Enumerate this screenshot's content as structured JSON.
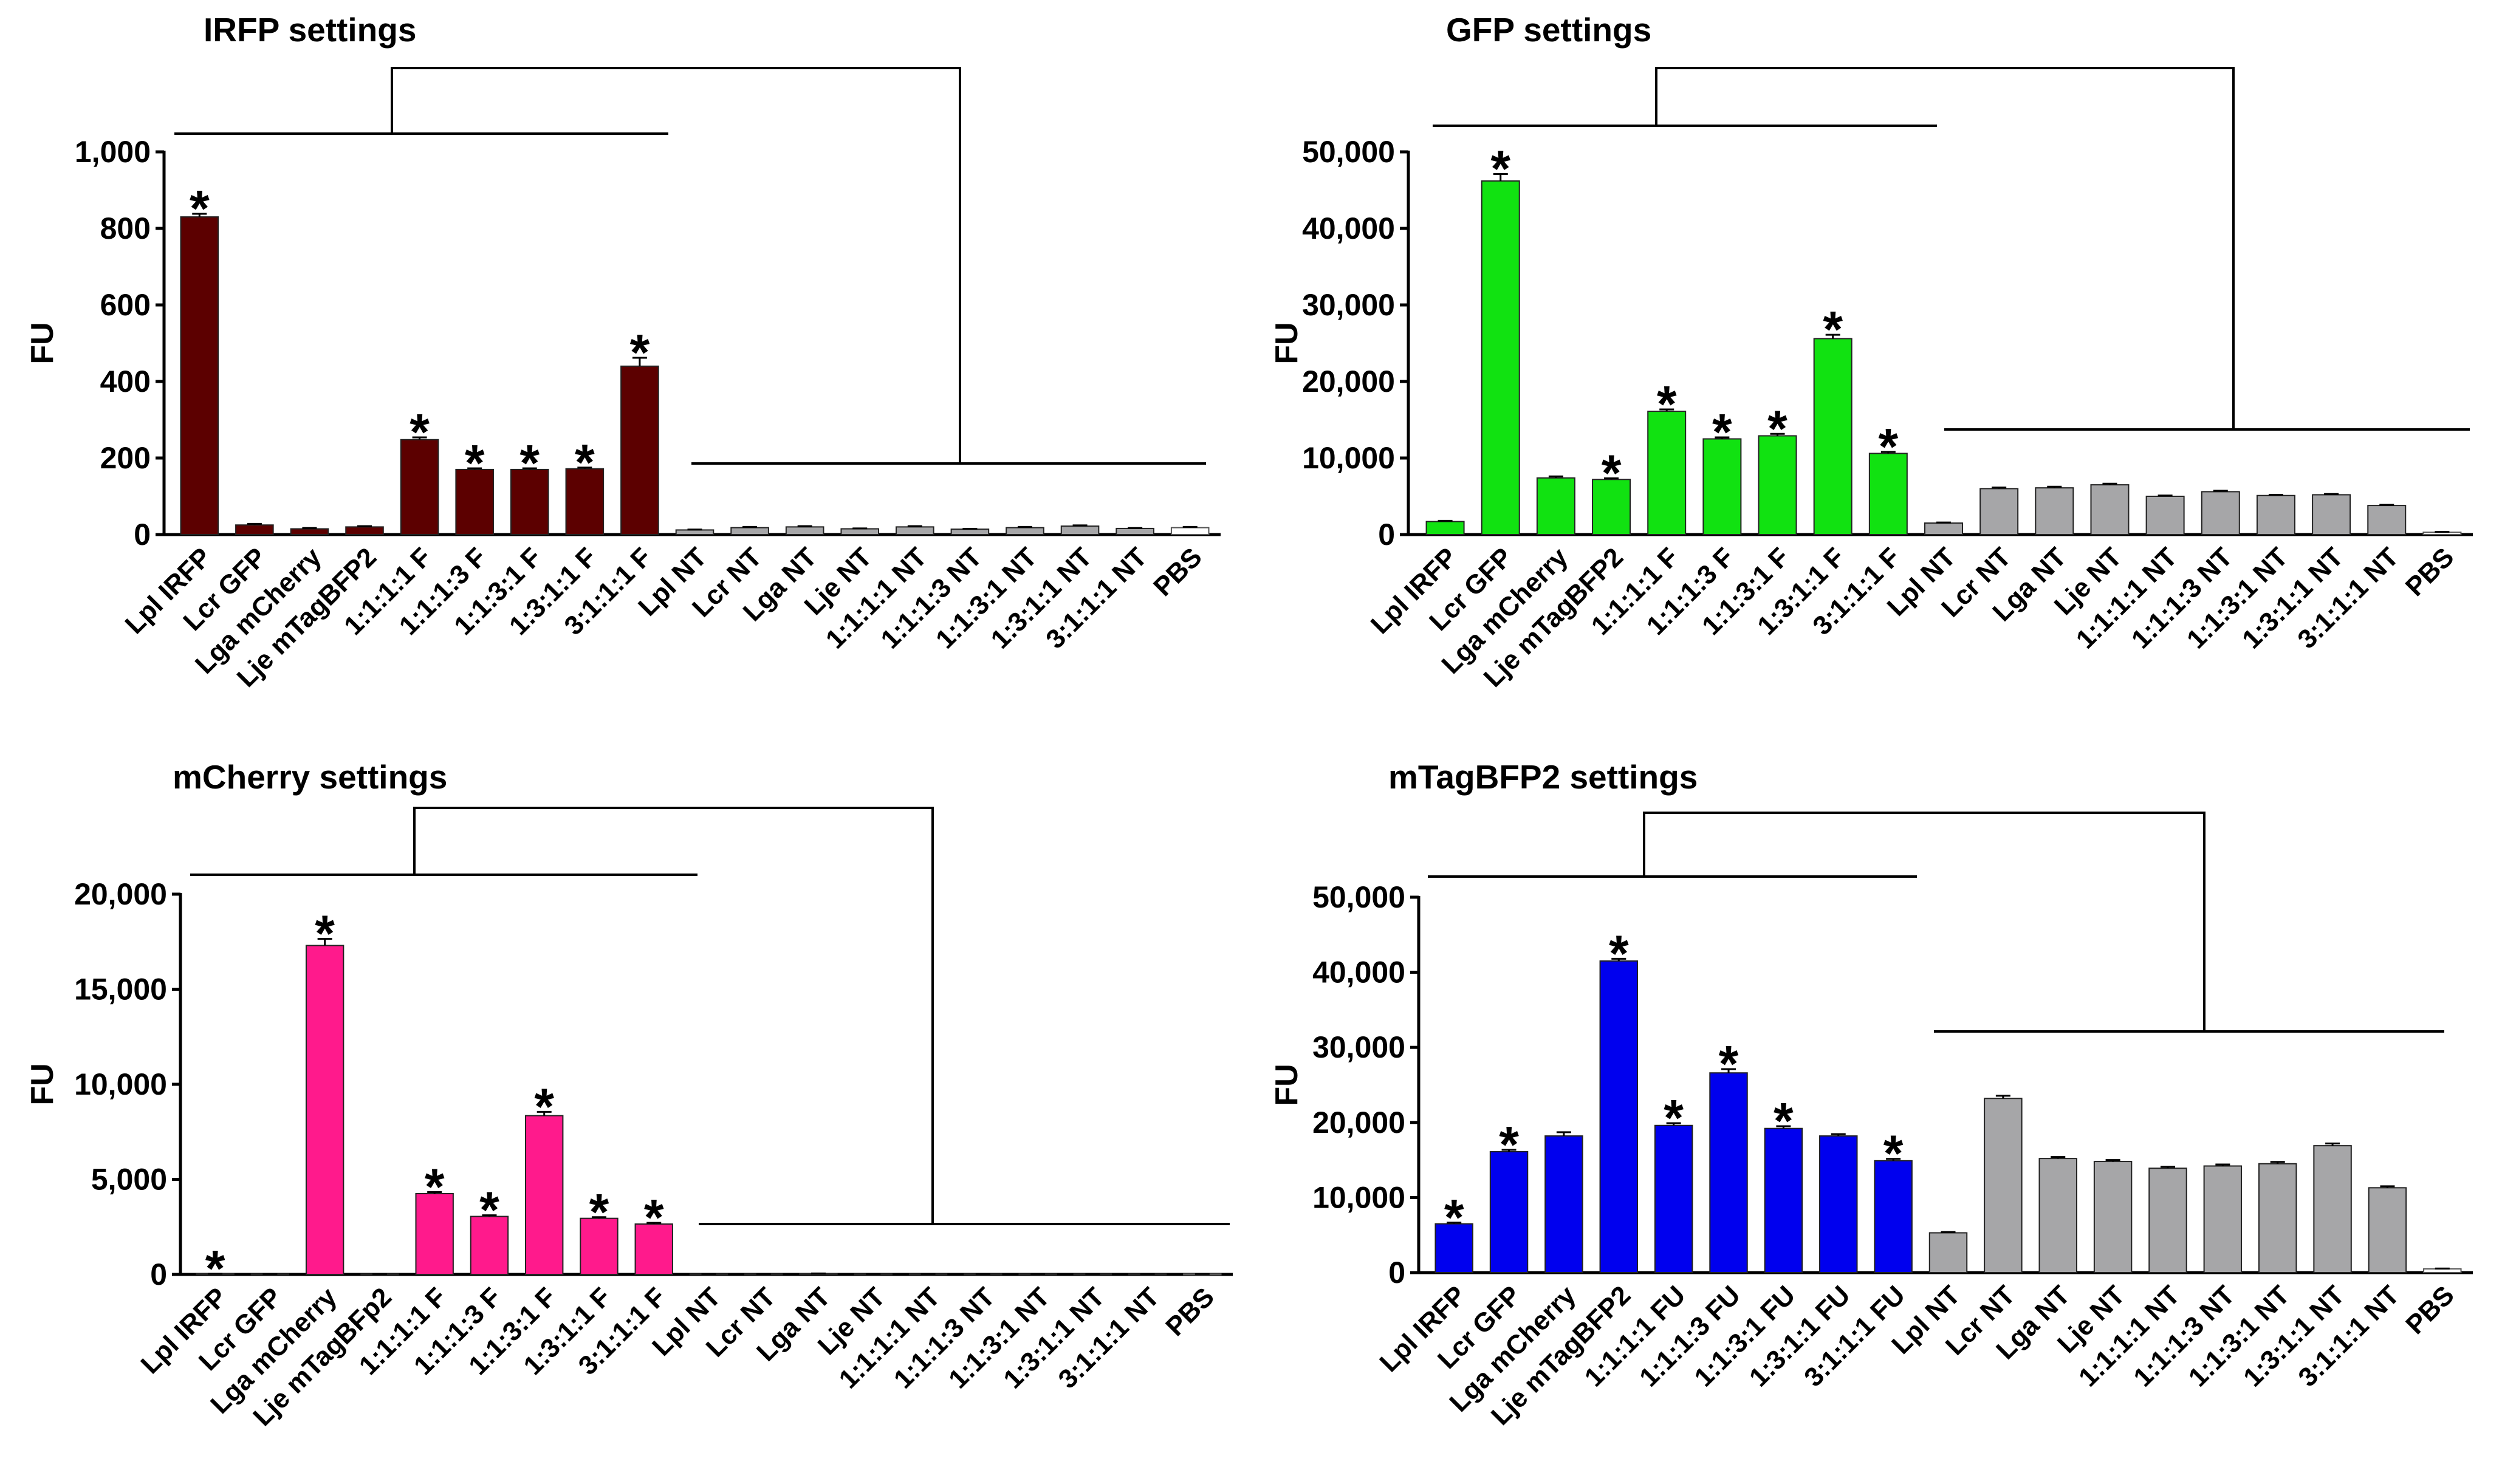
{
  "chart_data": [
    {
      "type": "bar",
      "title": "IRFP settings",
      "ylabel": "FU",
      "ylim": [
        0,
        1000
      ],
      "yticks": [
        "0",
        "200",
        "400",
        "600",
        "800",
        "1,000"
      ],
      "categories": [
        "Lpl IRFP",
        "Lcr GFP",
        "Lga mCherry",
        "Lje mTagBFP2",
        "1:1:1:1 F",
        "1:1:1:3 F",
        "1:1:3:1 F",
        "1:3:1:1 F",
        "3:1:1:1 F",
        "Lpl NT",
        "Lcr NT",
        "Lga NT",
        "Lje NT",
        "1:1:1:1 NT",
        "1:1:1:3 NT",
        "1:1:3:1 NT",
        "1:3:1:1 NT",
        "3:1:1:1 NT",
        "PBS"
      ],
      "values": [
        830,
        25,
        15,
        20,
        248,
        170,
        170,
        172,
        440,
        12,
        18,
        20,
        15,
        20,
        14,
        18,
        22,
        16,
        18
      ],
      "errors": [
        8,
        3,
        2,
        2,
        6,
        3,
        3,
        3,
        22,
        1,
        2,
        2,
        1,
        2,
        1,
        2,
        2,
        1,
        2
      ],
      "significant": [
        true,
        false,
        false,
        false,
        true,
        true,
        true,
        true,
        true,
        false,
        false,
        false,
        false,
        false,
        false,
        false,
        false,
        false,
        false
      ],
      "significance_marker": "*",
      "colors": [
        "#5c0000",
        "#5c0000",
        "#5c0000",
        "#5c0000",
        "#5c0000",
        "#5c0000",
        "#5c0000",
        "#5c0000",
        "#5c0000",
        "#a6a6a8",
        "#a6a6a8",
        "#a6a6a8",
        "#a6a6a8",
        "#a6a6a8",
        "#a6a6a8",
        "#a6a6a8",
        "#a6a6a8",
        "#a6a6a8",
        "#ffffff"
      ]
    },
    {
      "type": "bar",
      "title": "GFP settings",
      "ylabel": "FU",
      "ylim": [
        0,
        50000
      ],
      "yticks": [
        "0",
        "10,000",
        "20,000",
        "30,000",
        "40,000",
        "50,000"
      ],
      "categories": [
        "Lpl IRFP",
        "Lcr GFP",
        "Lga mCherry",
        "Lje mTagBFP2",
        "1:1:1:1 F",
        "1:1:1:3 F",
        "1:1:3:1 F",
        "1:3:1:1 F",
        "3:1:1:1 F",
        "Lpl NT",
        "Lcr NT",
        "Lga NT",
        "Lje NT",
        "1:1:1:1 NT",
        "1:1:1:3 NT",
        "1:1:3:1 NT",
        "1:3:1:1 NT",
        "3:1:1:1 NT",
        "PBS"
      ],
      "values": [
        1700,
        46200,
        7400,
        7200,
        16100,
        12500,
        12900,
        25600,
        10600,
        1500,
        6000,
        6100,
        6500,
        5000,
        5600,
        5100,
        5200,
        3800,
        300
      ],
      "errors": [
        100,
        900,
        200,
        150,
        250,
        200,
        250,
        500,
        200,
        80,
        150,
        150,
        150,
        100,
        120,
        100,
        100,
        80,
        50
      ],
      "significant": [
        false,
        true,
        false,
        true,
        true,
        true,
        true,
        true,
        true,
        false,
        false,
        false,
        false,
        false,
        false,
        false,
        false,
        false,
        false
      ],
      "significance_marker": "*",
      "colors": [
        "#11e211",
        "#11e211",
        "#11e211",
        "#11e211",
        "#11e211",
        "#11e211",
        "#11e211",
        "#11e211",
        "#11e211",
        "#a6a6a8",
        "#a6a6a8",
        "#a6a6a8",
        "#a6a6a8",
        "#a6a6a8",
        "#a6a6a8",
        "#a6a6a8",
        "#a6a6a8",
        "#a6a6a8",
        "#ffffff"
      ]
    },
    {
      "type": "bar",
      "title": "mCherry settings",
      "ylabel": "FU",
      "ylim": [
        0,
        20000
      ],
      "yticks": [
        "0",
        "5,000",
        "10,000",
        "15,000",
        "20,000"
      ],
      "categories": [
        "Lpl IRFP",
        "Lcr GFP",
        "Lga mCherry",
        "Lje mTagBFp2",
        "1:1:1:1 F",
        "1:1:1:3 F",
        "1:1:3:1 F",
        "1:3:1:1 F",
        "3:1:1:1 F",
        "Lpl NT",
        "Lcr NT",
        "Lga NT",
        "Lje NT",
        "1:1:1:1 NT",
        "1:1:1:3 NT",
        "1:1:3:1 NT",
        "1:3:1:1 NT",
        "3:1:1:1 NT",
        "PBS"
      ],
      "values": [
        30,
        20,
        17300,
        20,
        4250,
        3050,
        8350,
        2950,
        2650,
        20,
        20,
        40,
        20,
        20,
        20,
        20,
        20,
        20,
        20
      ],
      "errors": [
        5,
        5,
        350,
        5,
        80,
        60,
        200,
        60,
        60,
        5,
        5,
        10,
        5,
        5,
        5,
        5,
        5,
        5,
        5
      ],
      "significant": [
        true,
        false,
        true,
        false,
        true,
        true,
        true,
        true,
        true,
        false,
        false,
        false,
        false,
        false,
        false,
        false,
        false,
        false,
        false
      ],
      "significance_marker": "*",
      "colors": [
        "#ff1a8c",
        "#ff1a8c",
        "#ff1a8c",
        "#ff1a8c",
        "#ff1a8c",
        "#ff1a8c",
        "#ff1a8c",
        "#ff1a8c",
        "#ff1a8c",
        "#a6a6a8",
        "#a6a6a8",
        "#a6a6a8",
        "#a6a6a8",
        "#a6a6a8",
        "#a6a6a8",
        "#a6a6a8",
        "#a6a6a8",
        "#a6a6a8",
        "#ffffff"
      ]
    },
    {
      "type": "bar",
      "title": "mTagBFP2 settings",
      "ylabel": "FU",
      "ylim": [
        0,
        50000
      ],
      "yticks": [
        "0",
        "10,000",
        "20,000",
        "30,000",
        "40,000",
        "50,000"
      ],
      "categories": [
        "Lpl IRFP",
        "Lcr GFP",
        "Lga mCherry",
        "Lje mTagBFP2",
        "1:1:1:1 FU",
        "1:1:1:3 FU",
        "1:1:3:1 FU",
        "1:3:1:1 FU",
        "3:1:1:1 FU",
        "Lpl NT",
        "Lcr NT",
        "Lga NT",
        "Lje NT",
        "1:1:1:1 NT",
        "1:1:1:3 NT",
        "1:1:3:1 NT",
        "1:3:1:1 NT",
        "3:1:1:1 NT",
        "PBS"
      ],
      "values": [
        6500,
        16100,
        18200,
        41500,
        19600,
        26600,
        19200,
        18200,
        14900,
        5300,
        23200,
        15200,
        14800,
        13900,
        14200,
        14500,
        16900,
        11300,
        500
      ],
      "errors": [
        150,
        250,
        500,
        300,
        300,
        500,
        300,
        250,
        250,
        100,
        350,
        200,
        200,
        200,
        200,
        250,
        300,
        200,
        50
      ],
      "significant": [
        true,
        true,
        false,
        true,
        true,
        true,
        true,
        false,
        true,
        false,
        false,
        false,
        false,
        false,
        false,
        false,
        false,
        false,
        false
      ],
      "significance_marker": "*",
      "colors": [
        "#0000ee",
        "#0000ee",
        "#0000ee",
        "#0000ee",
        "#0000ee",
        "#0000ee",
        "#0000ee",
        "#0000ee",
        "#0000ee",
        "#a6a6a8",
        "#a6a6a8",
        "#a6a6a8",
        "#a6a6a8",
        "#a6a6a8",
        "#a6a6a8",
        "#a6a6a8",
        "#a6a6a8",
        "#a6a6a8",
        "#ffffff"
      ]
    }
  ]
}
